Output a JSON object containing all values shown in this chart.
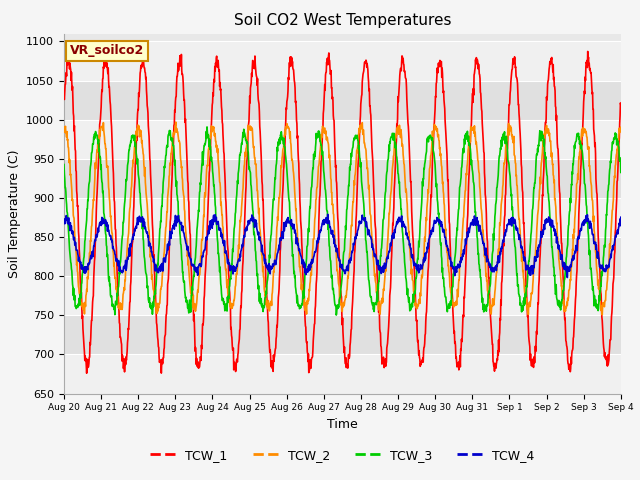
{
  "title": "Soil CO2 West Temperatures",
  "ylabel": "Soil Temperature (C)",
  "xlabel": "Time",
  "ylim": [
    650,
    1110
  ],
  "yticks": [
    650,
    700,
    750,
    800,
    850,
    900,
    950,
    1000,
    1050,
    1100
  ],
  "plot_bg_color": "#e8e8e8",
  "band_light": "#f0f0f0",
  "band_dark": "#e0e0e0",
  "series_colors": {
    "TCW_1": "#ff0000",
    "TCW_2": "#ff8c00",
    "TCW_3": "#00cc00",
    "TCW_4": "#0000cc"
  },
  "legend_label": "VR_soilco2",
  "legend_bbox_facecolor": "#ffffcc",
  "legend_bbox_edgecolor": "#cc8800",
  "n_points": 1500,
  "days": 15,
  "xtick_labels": [
    "Aug 20",
    "Aug 21",
    "Aug 22",
    "Aug 23",
    "Aug 24",
    "Aug 25",
    "Aug 26",
    "Aug 27",
    "Aug 28",
    "Aug 29",
    "Aug 30",
    "Aug 31",
    "Sep 1",
    "Sep 2",
    "Sep 3",
    "Sep 4"
  ],
  "TCW_1_mean": 880,
  "TCW_1_amp": 195,
  "TCW_1_phase": 0.8,
  "TCW_2_mean": 875,
  "TCW_2_amp": 115,
  "TCW_2_phase": 1.5,
  "TCW_3_mean": 870,
  "TCW_3_amp": 110,
  "TCW_3_phase": 2.5,
  "TCW_4_mean": 840,
  "TCW_4_amp": 32,
  "TCW_4_phase": 1.2
}
